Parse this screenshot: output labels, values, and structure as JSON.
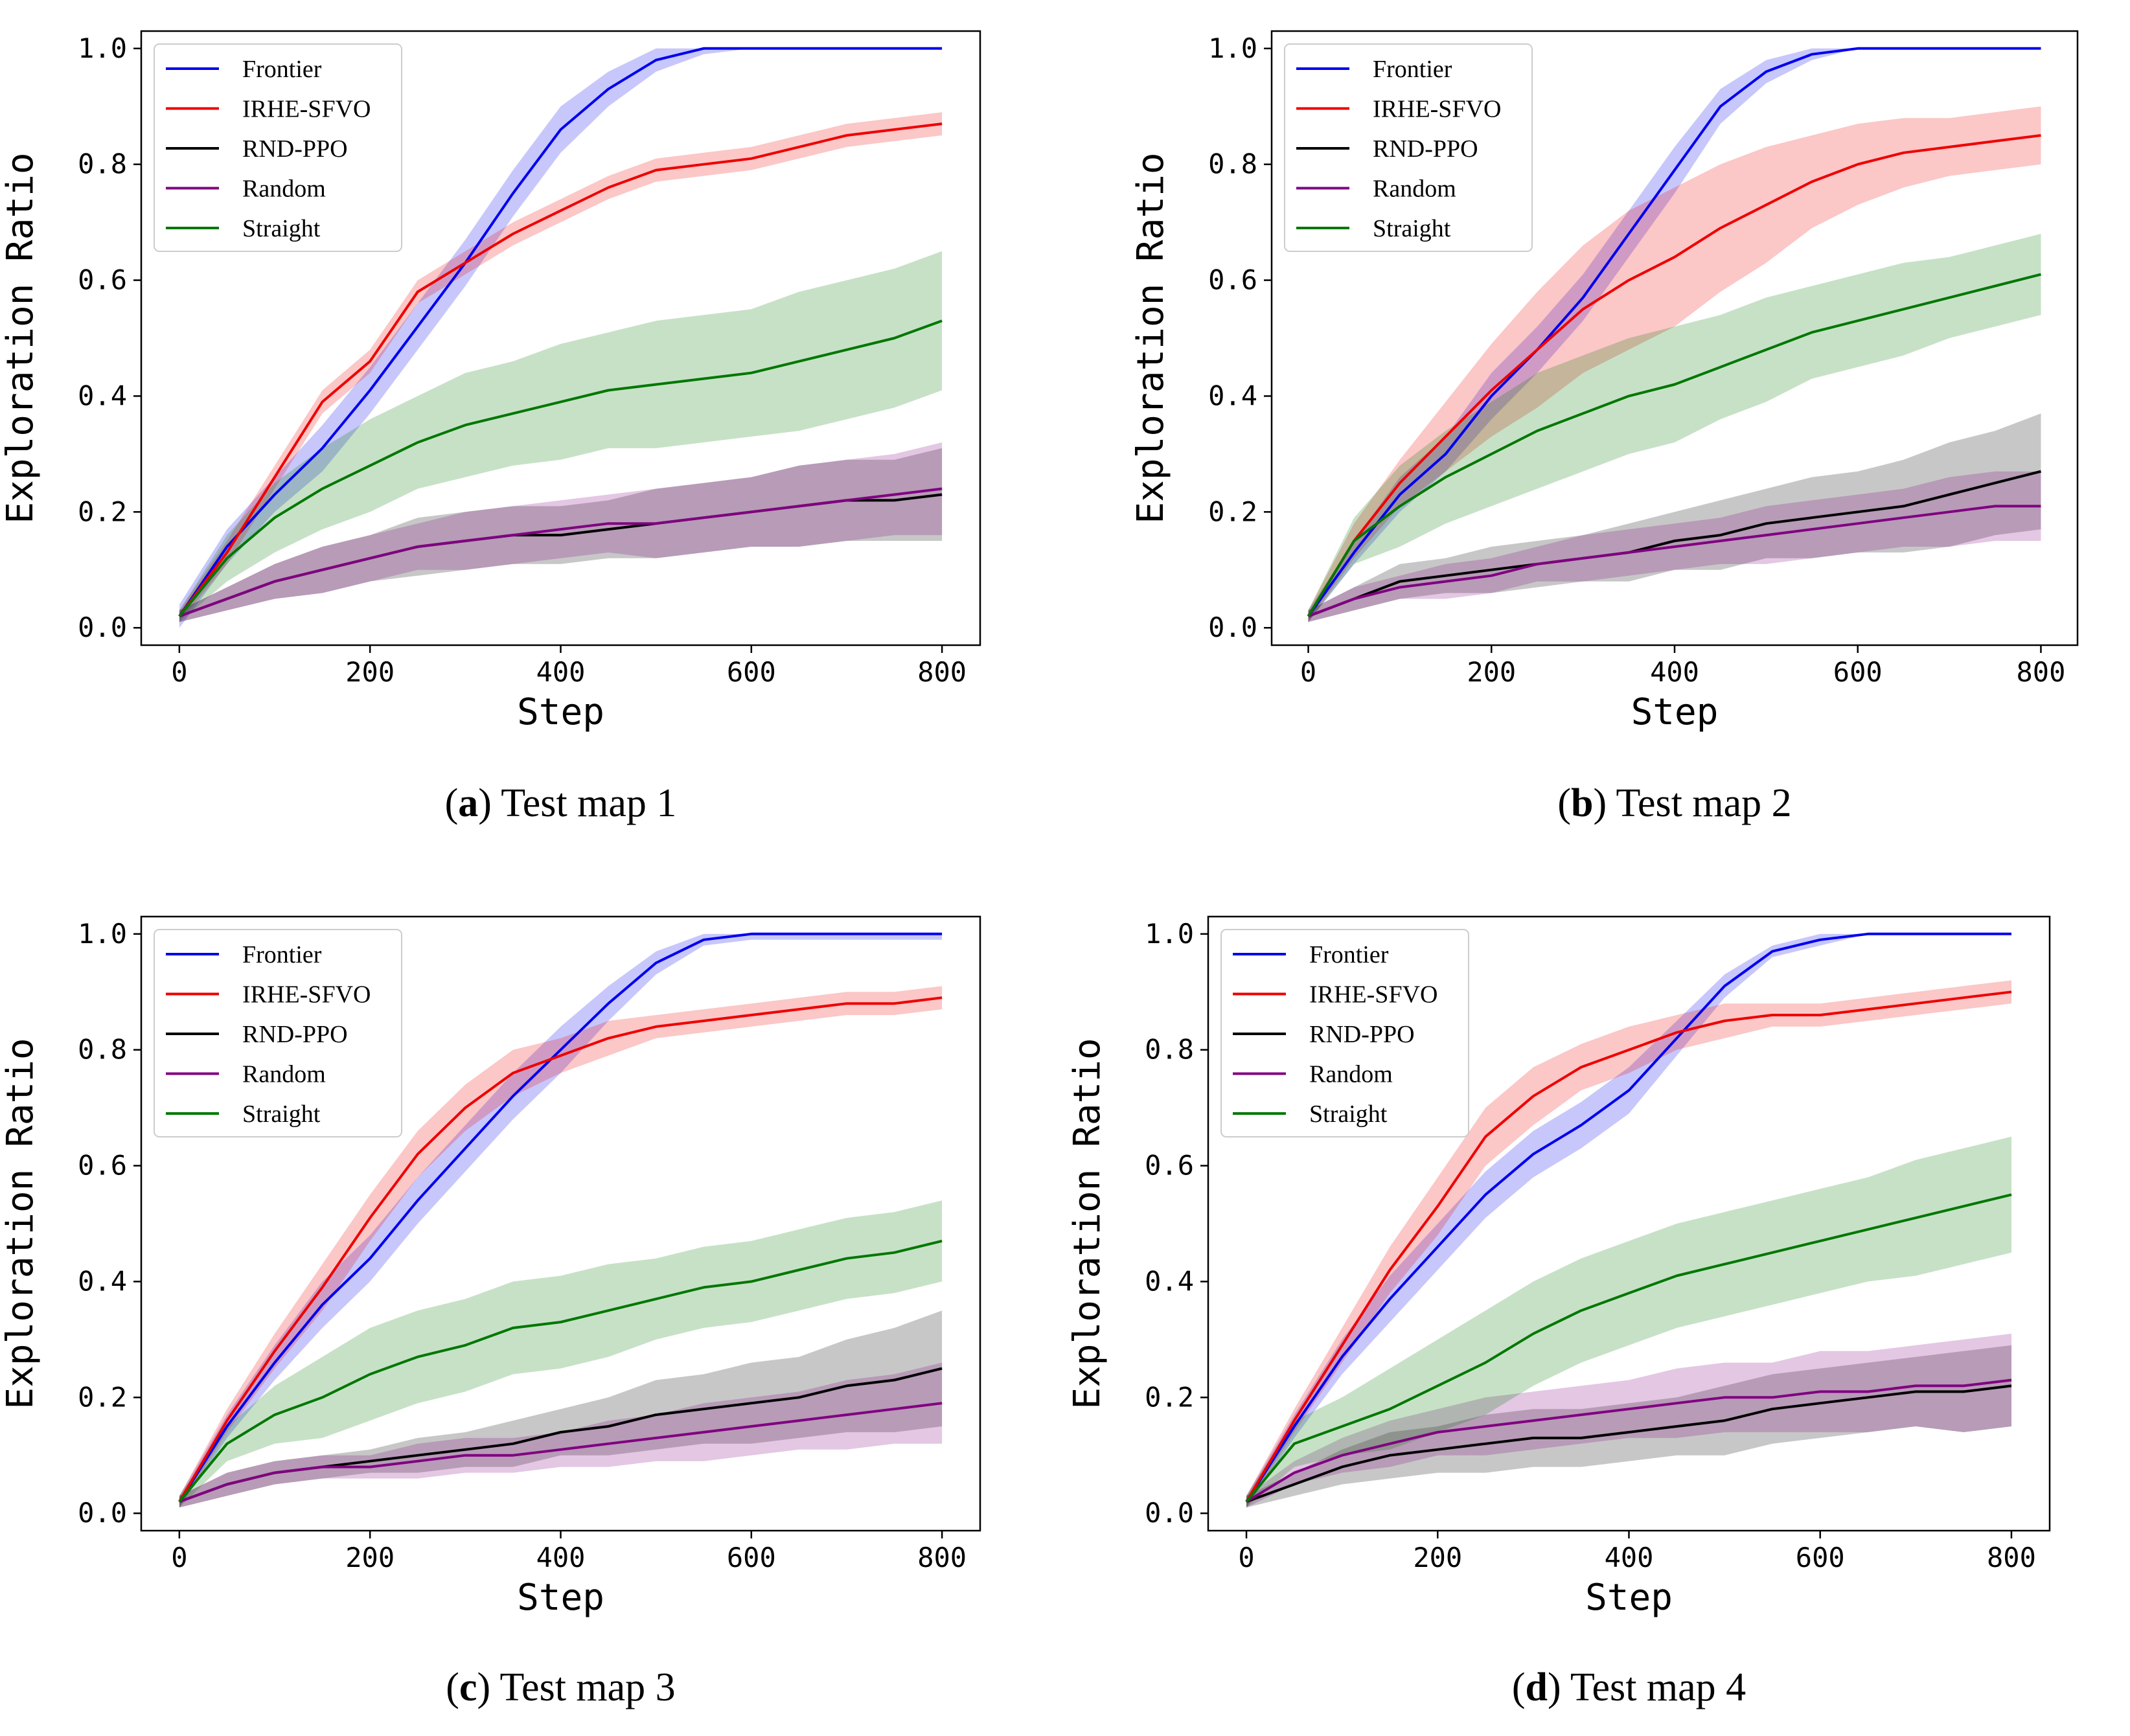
{
  "figure": {
    "colors": {
      "Frontier": "#0000ee",
      "IRHE-SFVO": "#ee0000",
      "RND-PPO": "#000000",
      "Random": "#800080",
      "Straight": "#007700"
    }
  },
  "chart_data": [
    {
      "type": "line",
      "caption_letter": "a",
      "caption_text": "Test map 1",
      "xlabel": "Step",
      "ylabel": "Exploration Ratio",
      "xlim": [
        -40,
        840
      ],
      "ylim": [
        -0.03,
        1.03
      ],
      "xticks": [
        "0",
        "200",
        "400",
        "600",
        "800"
      ],
      "yticks": [
        "0.0",
        "0.2",
        "0.4",
        "0.6",
        "0.8",
        "1.0"
      ],
      "legend_position": "top-left",
      "x": [
        0,
        50,
        100,
        150,
        200,
        250,
        300,
        350,
        400,
        450,
        500,
        550,
        600,
        650,
        700,
        750,
        800
      ],
      "series": [
        {
          "name": "Frontier",
          "values": [
            0.02,
            0.14,
            0.23,
            0.31,
            0.41,
            0.52,
            0.63,
            0.75,
            0.86,
            0.93,
            0.98,
            1.0,
            1.0,
            1.0,
            1.0,
            1.0,
            1.0
          ],
          "band": [
            0.02,
            0.03,
            0.03,
            0.04,
            0.04,
            0.04,
            0.04,
            0.04,
            0.04,
            0.03,
            0.02,
            0.01,
            0.0,
            0.0,
            0.0,
            0.0,
            0.0
          ]
        },
        {
          "name": "IRHE-SFVO",
          "values": [
            0.02,
            0.13,
            0.26,
            0.39,
            0.46,
            0.58,
            0.63,
            0.68,
            0.72,
            0.76,
            0.79,
            0.8,
            0.81,
            0.83,
            0.85,
            0.86,
            0.87
          ],
          "band": [
            0.01,
            0.02,
            0.02,
            0.02,
            0.02,
            0.02,
            0.02,
            0.02,
            0.02,
            0.02,
            0.02,
            0.02,
            0.02,
            0.02,
            0.02,
            0.02,
            0.02
          ]
        },
        {
          "name": "RND-PPO",
          "values": [
            0.02,
            0.05,
            0.08,
            0.1,
            0.12,
            0.14,
            0.15,
            0.16,
            0.16,
            0.17,
            0.18,
            0.19,
            0.2,
            0.21,
            0.22,
            0.22,
            0.23
          ],
          "band": [
            0.01,
            0.02,
            0.03,
            0.04,
            0.04,
            0.05,
            0.05,
            0.05,
            0.05,
            0.05,
            0.06,
            0.06,
            0.06,
            0.07,
            0.07,
            0.07,
            0.08
          ]
        },
        {
          "name": "Random",
          "values": [
            0.02,
            0.05,
            0.08,
            0.1,
            0.12,
            0.14,
            0.15,
            0.16,
            0.17,
            0.18,
            0.18,
            0.19,
            0.2,
            0.21,
            0.22,
            0.23,
            0.24
          ],
          "band": [
            0.01,
            0.02,
            0.03,
            0.04,
            0.04,
            0.04,
            0.05,
            0.05,
            0.05,
            0.05,
            0.06,
            0.06,
            0.06,
            0.07,
            0.07,
            0.07,
            0.08
          ]
        },
        {
          "name": "Straight",
          "values": [
            0.02,
            0.12,
            0.19,
            0.24,
            0.28,
            0.32,
            0.35,
            0.37,
            0.39,
            0.41,
            0.42,
            0.43,
            0.44,
            0.46,
            0.48,
            0.5,
            0.53
          ],
          "band": [
            0.01,
            0.04,
            0.06,
            0.07,
            0.08,
            0.08,
            0.09,
            0.09,
            0.1,
            0.1,
            0.11,
            0.11,
            0.11,
            0.12,
            0.12,
            0.12,
            0.12
          ]
        }
      ]
    },
    {
      "type": "line",
      "caption_letter": "b",
      "caption_text": "Test map 2",
      "xlabel": "Step",
      "ylabel": "Exploration Ratio",
      "xlim": [
        -40,
        840
      ],
      "ylim": [
        -0.03,
        1.03
      ],
      "xticks": [
        "0",
        "200",
        "400",
        "600",
        "800"
      ],
      "yticks": [
        "0.0",
        "0.2",
        "0.4",
        "0.6",
        "0.8",
        "1.0"
      ],
      "legend_position": "top-left",
      "x": [
        0,
        50,
        100,
        150,
        200,
        250,
        300,
        350,
        400,
        450,
        500,
        550,
        600,
        650,
        700,
        750,
        800
      ],
      "series": [
        {
          "name": "Frontier",
          "values": [
            0.02,
            0.13,
            0.23,
            0.3,
            0.4,
            0.48,
            0.57,
            0.68,
            0.79,
            0.9,
            0.96,
            0.99,
            1.0,
            1.0,
            1.0,
            1.0,
            1.0
          ],
          "band": [
            0.01,
            0.02,
            0.03,
            0.03,
            0.04,
            0.04,
            0.04,
            0.04,
            0.04,
            0.03,
            0.02,
            0.01,
            0.0,
            0.0,
            0.0,
            0.0,
            0.0
          ]
        },
        {
          "name": "IRHE-SFVO",
          "values": [
            0.02,
            0.15,
            0.25,
            0.33,
            0.41,
            0.48,
            0.55,
            0.6,
            0.64,
            0.69,
            0.73,
            0.77,
            0.8,
            0.82,
            0.83,
            0.84,
            0.85
          ],
          "band": [
            0.01,
            0.03,
            0.04,
            0.06,
            0.08,
            0.1,
            0.11,
            0.12,
            0.12,
            0.11,
            0.1,
            0.08,
            0.07,
            0.06,
            0.05,
            0.05,
            0.05
          ]
        },
        {
          "name": "RND-PPO",
          "values": [
            0.02,
            0.05,
            0.08,
            0.09,
            0.1,
            0.11,
            0.12,
            0.13,
            0.15,
            0.16,
            0.18,
            0.19,
            0.2,
            0.21,
            0.23,
            0.25,
            0.27
          ],
          "band": [
            0.01,
            0.02,
            0.03,
            0.03,
            0.04,
            0.04,
            0.04,
            0.05,
            0.05,
            0.06,
            0.06,
            0.07,
            0.07,
            0.08,
            0.09,
            0.09,
            0.1
          ]
        },
        {
          "name": "Random",
          "values": [
            0.02,
            0.05,
            0.07,
            0.08,
            0.09,
            0.11,
            0.12,
            0.13,
            0.14,
            0.15,
            0.16,
            0.17,
            0.18,
            0.19,
            0.2,
            0.21,
            0.21
          ],
          "band": [
            0.01,
            0.02,
            0.02,
            0.03,
            0.03,
            0.03,
            0.04,
            0.04,
            0.04,
            0.04,
            0.05,
            0.05,
            0.05,
            0.05,
            0.06,
            0.06,
            0.06
          ]
        },
        {
          "name": "Straight",
          "values": [
            0.02,
            0.15,
            0.21,
            0.26,
            0.3,
            0.34,
            0.37,
            0.4,
            0.42,
            0.45,
            0.48,
            0.51,
            0.53,
            0.55,
            0.57,
            0.59,
            0.61
          ],
          "band": [
            0.01,
            0.04,
            0.07,
            0.08,
            0.09,
            0.1,
            0.1,
            0.1,
            0.1,
            0.09,
            0.09,
            0.08,
            0.08,
            0.08,
            0.07,
            0.07,
            0.07
          ]
        }
      ]
    },
    {
      "type": "line",
      "caption_letter": "c",
      "caption_text": "Test map 3",
      "xlabel": "Step",
      "ylabel": "Exploration Ratio",
      "xlim": [
        -40,
        840
      ],
      "ylim": [
        -0.03,
        1.03
      ],
      "xticks": [
        "0",
        "200",
        "400",
        "600",
        "800"
      ],
      "yticks": [
        "0.0",
        "0.2",
        "0.4",
        "0.6",
        "0.8",
        "1.0"
      ],
      "legend_position": "top-left",
      "x": [
        0,
        50,
        100,
        150,
        200,
        250,
        300,
        350,
        400,
        450,
        500,
        550,
        600,
        650,
        700,
        750,
        800
      ],
      "series": [
        {
          "name": "Frontier",
          "values": [
            0.02,
            0.15,
            0.26,
            0.36,
            0.44,
            0.54,
            0.63,
            0.72,
            0.8,
            0.88,
            0.95,
            0.99,
            1.0,
            1.0,
            1.0,
            1.0,
            1.0
          ],
          "band": [
            0.01,
            0.02,
            0.03,
            0.04,
            0.04,
            0.04,
            0.04,
            0.04,
            0.04,
            0.03,
            0.02,
            0.01,
            0.01,
            0.01,
            0.01,
            0.01,
            0.01
          ]
        },
        {
          "name": "IRHE-SFVO",
          "values": [
            0.02,
            0.16,
            0.28,
            0.39,
            0.51,
            0.62,
            0.7,
            0.76,
            0.79,
            0.82,
            0.84,
            0.85,
            0.86,
            0.87,
            0.88,
            0.88,
            0.89
          ],
          "band": [
            0.01,
            0.02,
            0.03,
            0.04,
            0.04,
            0.04,
            0.04,
            0.04,
            0.03,
            0.03,
            0.02,
            0.02,
            0.02,
            0.02,
            0.02,
            0.02,
            0.02
          ]
        },
        {
          "name": "RND-PPO",
          "values": [
            0.02,
            0.05,
            0.07,
            0.08,
            0.09,
            0.1,
            0.11,
            0.12,
            0.14,
            0.15,
            0.17,
            0.18,
            0.19,
            0.2,
            0.22,
            0.23,
            0.25
          ],
          "band": [
            0.01,
            0.02,
            0.02,
            0.02,
            0.02,
            0.03,
            0.03,
            0.04,
            0.04,
            0.05,
            0.06,
            0.06,
            0.07,
            0.07,
            0.08,
            0.09,
            0.1
          ]
        },
        {
          "name": "Random",
          "values": [
            0.02,
            0.05,
            0.07,
            0.08,
            0.08,
            0.09,
            0.1,
            0.1,
            0.11,
            0.12,
            0.13,
            0.14,
            0.15,
            0.16,
            0.17,
            0.18,
            0.19
          ],
          "band": [
            0.01,
            0.02,
            0.02,
            0.02,
            0.02,
            0.03,
            0.03,
            0.03,
            0.03,
            0.04,
            0.04,
            0.05,
            0.05,
            0.05,
            0.06,
            0.06,
            0.07
          ]
        },
        {
          "name": "Straight",
          "values": [
            0.02,
            0.12,
            0.17,
            0.2,
            0.24,
            0.27,
            0.29,
            0.32,
            0.33,
            0.35,
            0.37,
            0.39,
            0.4,
            0.42,
            0.44,
            0.45,
            0.47
          ],
          "band": [
            0.01,
            0.03,
            0.05,
            0.07,
            0.08,
            0.08,
            0.08,
            0.08,
            0.08,
            0.08,
            0.07,
            0.07,
            0.07,
            0.07,
            0.07,
            0.07,
            0.07
          ]
        }
      ]
    },
    {
      "type": "line",
      "caption_letter": "d",
      "caption_text": "Test map 4",
      "xlabel": "Step",
      "ylabel": "Exploration Ratio",
      "xlim": [
        -40,
        840
      ],
      "ylim": [
        -0.03,
        1.03
      ],
      "xticks": [
        "0",
        "200",
        "400",
        "600",
        "800"
      ],
      "yticks": [
        "0.0",
        "0.2",
        "0.4",
        "0.6",
        "0.8",
        "1.0"
      ],
      "legend_position": "top-left",
      "x": [
        0,
        50,
        100,
        150,
        200,
        250,
        300,
        350,
        400,
        450,
        500,
        550,
        600,
        650,
        700,
        750,
        800
      ],
      "series": [
        {
          "name": "Frontier",
          "values": [
            0.02,
            0.15,
            0.27,
            0.37,
            0.46,
            0.55,
            0.62,
            0.67,
            0.73,
            0.82,
            0.91,
            0.97,
            0.99,
            1.0,
            1.0,
            1.0,
            1.0
          ],
          "band": [
            0.01,
            0.02,
            0.03,
            0.04,
            0.04,
            0.04,
            0.04,
            0.04,
            0.04,
            0.03,
            0.02,
            0.01,
            0.01,
            0.0,
            0.0,
            0.0,
            0.0
          ]
        },
        {
          "name": "IRHE-SFVO",
          "values": [
            0.02,
            0.16,
            0.29,
            0.42,
            0.53,
            0.65,
            0.72,
            0.77,
            0.8,
            0.83,
            0.85,
            0.86,
            0.86,
            0.87,
            0.88,
            0.89,
            0.9
          ],
          "band": [
            0.01,
            0.02,
            0.03,
            0.04,
            0.05,
            0.05,
            0.05,
            0.04,
            0.04,
            0.03,
            0.03,
            0.02,
            0.02,
            0.02,
            0.02,
            0.02,
            0.02
          ]
        },
        {
          "name": "RND-PPO",
          "values": [
            0.02,
            0.05,
            0.08,
            0.1,
            0.11,
            0.12,
            0.13,
            0.13,
            0.14,
            0.15,
            0.16,
            0.18,
            0.19,
            0.2,
            0.21,
            0.21,
            0.22
          ],
          "band": [
            0.01,
            0.02,
            0.03,
            0.04,
            0.04,
            0.05,
            0.05,
            0.05,
            0.05,
            0.05,
            0.06,
            0.06,
            0.06,
            0.06,
            0.06,
            0.07,
            0.07
          ]
        },
        {
          "name": "Random",
          "values": [
            0.02,
            0.07,
            0.1,
            0.12,
            0.14,
            0.15,
            0.16,
            0.17,
            0.18,
            0.19,
            0.2,
            0.2,
            0.21,
            0.21,
            0.22,
            0.22,
            0.23
          ],
          "band": [
            0.01,
            0.02,
            0.03,
            0.04,
            0.04,
            0.05,
            0.05,
            0.05,
            0.05,
            0.06,
            0.06,
            0.06,
            0.07,
            0.07,
            0.07,
            0.08,
            0.08
          ]
        },
        {
          "name": "Straight",
          "values": [
            0.02,
            0.12,
            0.15,
            0.18,
            0.22,
            0.26,
            0.31,
            0.35,
            0.38,
            0.41,
            0.43,
            0.45,
            0.47,
            0.49,
            0.51,
            0.53,
            0.55
          ],
          "band": [
            0.01,
            0.04,
            0.05,
            0.07,
            0.08,
            0.09,
            0.09,
            0.09,
            0.09,
            0.09,
            0.09,
            0.09,
            0.09,
            0.09,
            0.1,
            0.1,
            0.1
          ]
        }
      ]
    }
  ]
}
